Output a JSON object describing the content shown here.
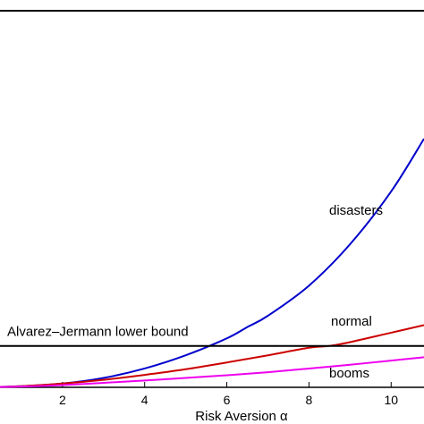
{
  "chart_data": {
    "type": "line",
    "title": "",
    "xlabel": "Risk Aversion α",
    "ylabel": "",
    "xlim": [
      0,
      10.8
    ],
    "ylim": [
      0,
      1
    ],
    "grid": false,
    "legend": "none",
    "x_ticks": [
      2,
      4,
      6,
      8,
      10
    ],
    "series": [
      {
        "name": "disasters",
        "color": "#0000cc",
        "x": [
          0,
          1,
          2,
          3,
          4,
          5,
          6,
          6.5,
          7,
          8,
          9,
          10,
          10.8
        ],
        "y": [
          0.0,
          0.003,
          0.01,
          0.025,
          0.05,
          0.085,
          0.13,
          0.16,
          0.19,
          0.27,
          0.38,
          0.52,
          0.66
        ]
      },
      {
        "name": "normal",
        "color": "#cc0000",
        "x": [
          0,
          1,
          2,
          3,
          4,
          5,
          6,
          7,
          8,
          8.5,
          9,
          10,
          10.8
        ],
        "y": [
          0.0,
          0.003,
          0.01,
          0.02,
          0.033,
          0.048,
          0.066,
          0.085,
          0.105,
          0.11,
          0.12,
          0.145,
          0.165
        ]
      },
      {
        "name": "booms",
        "color": "#ee00ee",
        "x": [
          0,
          1,
          2,
          3,
          4,
          5,
          6,
          7,
          8,
          9,
          10,
          10.8
        ],
        "y": [
          0.0,
          0.002,
          0.006,
          0.012,
          0.018,
          0.025,
          0.032,
          0.04,
          0.05,
          0.06,
          0.071,
          0.08
        ]
      }
    ],
    "annotations": [
      {
        "text": "Alvarez–Jermann lower bound",
        "type": "hline",
        "y": 0.11,
        "color": "#000000"
      }
    ]
  }
}
